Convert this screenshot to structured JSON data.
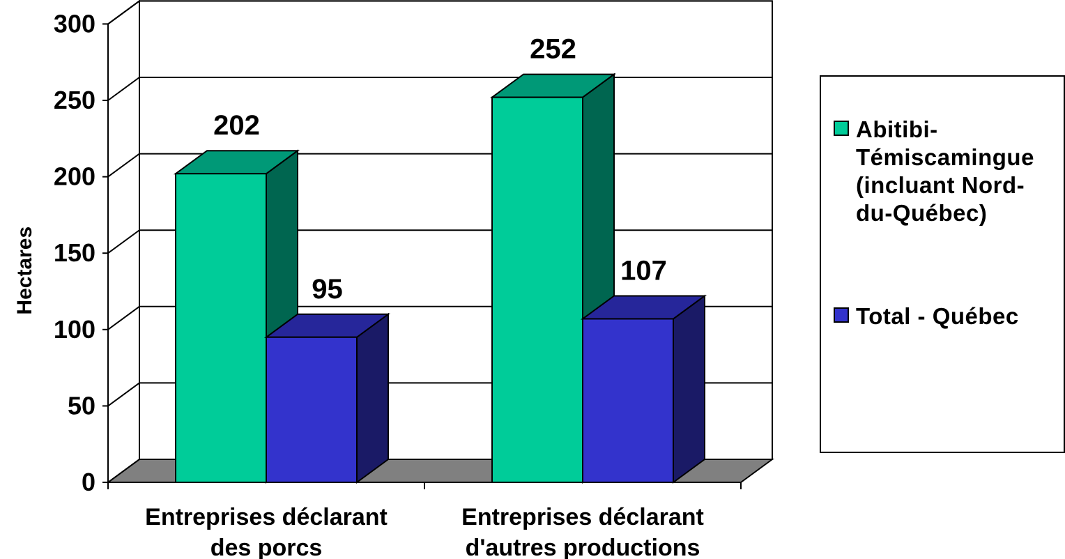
{
  "chart_data": {
    "type": "bar",
    "categories": [
      "Entreprises déclarant des porcs",
      "Entreprises déclarant d'autres productions"
    ],
    "category_lines": [
      [
        "Entreprises déclarant",
        "des porcs"
      ],
      [
        "Entreprises déclarant",
        "d'autres productions"
      ]
    ],
    "series": [
      {
        "name": "Abitibi-Témiscamingue (incluant Nord-du-Québec)",
        "name_lines": [
          "Abitibi-",
          "Témiscamingue",
          "(incluant Nord-",
          "du-Québec)"
        ],
        "values": [
          202,
          252
        ],
        "labels": [
          "202",
          "252"
        ],
        "color": "#00CC99",
        "top_color": "#009977",
        "side_color": "#006650"
      },
      {
        "name": "Total - Québec",
        "name_lines": [
          "Total - Québec"
        ],
        "values": [
          95,
          107
        ],
        "labels": [
          "95",
          "107"
        ],
        "color": "#3333CC",
        "top_color": "#26269A",
        "side_color": "#1A1A66"
      }
    ],
    "ylabel": "Hectares",
    "ylim": [
      0,
      300
    ],
    "yticks": [
      "0",
      "50",
      "100",
      "150",
      "200",
      "250",
      "300"
    ],
    "grid": true,
    "legend": "right",
    "floor_color": "#808080"
  }
}
